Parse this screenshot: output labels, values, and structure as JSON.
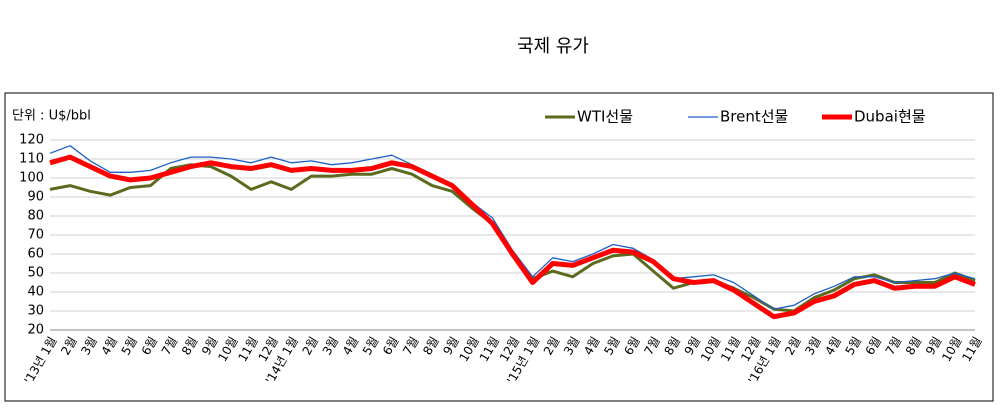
{
  "chart_data": {
    "type": "line",
    "title": "국제 유가",
    "unit_label": "단위 : U$/bbl",
    "categories": [
      "'13년 1월",
      "2월",
      "3월",
      "4월",
      "5월",
      "6월",
      "7월",
      "8월",
      "9월",
      "10월",
      "11월",
      "12월",
      "'14년 1월",
      "2월",
      "3월",
      "4월",
      "5월",
      "6월",
      "7월",
      "8월",
      "9월",
      "10월",
      "11월",
      "12월",
      "'15년 1월",
      "2월",
      "3월",
      "4월",
      "5월",
      "6월",
      "7월",
      "8월",
      "9월",
      "10월",
      "11월",
      "12월",
      "'16년 1월",
      "2월",
      "3월",
      "4월",
      "5월",
      "6월",
      "7월",
      "8월",
      "9월",
      "10월",
      "11월"
    ],
    "series": [
      {
        "name": "WTI선물",
        "color": "#5b6b1e",
        "values": [
          94,
          96,
          93,
          91,
          95,
          96,
          105,
          107,
          106,
          101,
          94,
          98,
          94,
          101,
          101,
          102,
          102,
          105,
          102,
          96,
          93,
          84,
          76,
          59,
          47,
          51,
          48,
          55,
          59,
          60,
          51,
          42,
          45,
          46,
          42,
          37,
          31,
          30,
          37,
          41,
          47,
          49,
          45,
          45,
          45,
          50,
          46
        ]
      },
      {
        "name": "Brent선물",
        "color": "#1f5fc8",
        "values": [
          113,
          117,
          109,
          103,
          103,
          104,
          108,
          111,
          111,
          110,
          108,
          111,
          108,
          109,
          107,
          108,
          110,
          112,
          107,
          102,
          97,
          87,
          79,
          62,
          48,
          58,
          56,
          60,
          65,
          63,
          57,
          47,
          48,
          49,
          45,
          38,
          31,
          33,
          39,
          43,
          48,
          48,
          45,
          46,
          47,
          50,
          47
        ]
      },
      {
        "name": "Dubai현물",
        "color": "#ff0000",
        "values": [
          108,
          111,
          106,
          101,
          99,
          100,
          103,
          106,
          108,
          106,
          105,
          107,
          104,
          105,
          104,
          104,
          105,
          108,
          106,
          101,
          96,
          86,
          76,
          60,
          45,
          55,
          54,
          58,
          62,
          61,
          56,
          47,
          45,
          46,
          41,
          34,
          27,
          29,
          35,
          38,
          44,
          46,
          42,
          43,
          43,
          48,
          44
        ]
      }
    ],
    "ylim": [
      20,
      120
    ],
    "yticks": [
      20,
      30,
      40,
      50,
      60,
      70,
      80,
      90,
      100,
      110,
      120
    ],
    "grid": true,
    "legend": "top-right"
  }
}
